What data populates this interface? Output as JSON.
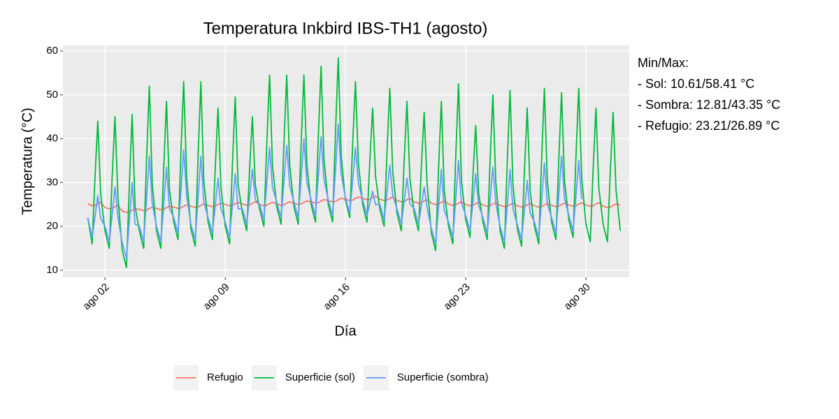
{
  "chart_data": {
    "type": "line",
    "title": "Temperatura Inkbird IBS-TH1 (agosto)",
    "xlabel": "Día",
    "ylabel": "Temperatura (°C)",
    "annotation": [
      "Min/Max:",
      "- Sol: 10.61/58.41 °C",
      "- Sombra: 12.81/43.35 °C",
      "- Refugio: 23.21/26.89 °C"
    ],
    "legend": "bottom",
    "grid": true,
    "xlim": [
      -0.45,
      32.52
    ],
    "ylim": [
      8.41,
      61.27
    ],
    "xticks": [
      {
        "value": 2,
        "label": "ago 02"
      },
      {
        "value": 9,
        "label": "ago 09"
      },
      {
        "value": 16,
        "label": "ago 16"
      },
      {
        "value": 23,
        "label": "ago 23"
      },
      {
        "value": 30,
        "label": "ago 30"
      }
    ],
    "yticks": [
      10,
      20,
      30,
      40,
      50,
      60
    ],
    "x": [
      1,
      1.25,
      1.42,
      1.58,
      1.75,
      2,
      2.25,
      2.42,
      2.58,
      2.75,
      3,
      3.25,
      3.42,
      3.58,
      3.75,
      4,
      4.25,
      4.42,
      4.58,
      4.75,
      5,
      5.25,
      5.42,
      5.58,
      5.75,
      6,
      6.25,
      6.42,
      6.58,
      6.75,
      7,
      7.25,
      7.42,
      7.58,
      7.75,
      8,
      8.25,
      8.42,
      8.58,
      8.75,
      9,
      9.25,
      9.42,
      9.58,
      9.75,
      10,
      10.25,
      10.42,
      10.58,
      10.75,
      11,
      11.25,
      11.42,
      11.58,
      11.75,
      12,
      12.25,
      12.42,
      12.58,
      12.75,
      13,
      13.25,
      13.42,
      13.58,
      13.75,
      14,
      14.25,
      14.42,
      14.58,
      14.75,
      15,
      15.25,
      15.42,
      15.58,
      15.75,
      16,
      16.25,
      16.42,
      16.58,
      16.75,
      17,
      17.25,
      17.42,
      17.58,
      17.75,
      18,
      18.25,
      18.42,
      18.58,
      18.75,
      19,
      19.25,
      19.42,
      19.58,
      19.75,
      20,
      20.25,
      20.42,
      20.58,
      20.75,
      21,
      21.25,
      21.42,
      21.58,
      21.75,
      22,
      22.25,
      22.42,
      22.58,
      22.75,
      23,
      23.25,
      23.42,
      23.58,
      23.75,
      24,
      24.25,
      24.42,
      24.58,
      24.75,
      25,
      25.25,
      25.42,
      25.58,
      25.75,
      26,
      26.25,
      26.42,
      26.58,
      26.75,
      27,
      27.25,
      27.42,
      27.58,
      27.75,
      28,
      28.25,
      28.42,
      28.58,
      28.75,
      29,
      29.25,
      29.42,
      29.58,
      29.75,
      30,
      30.25,
      30.42,
      30.58,
      30.75,
      31,
      31.25,
      31.42,
      31.58,
      31.75,
      32
    ],
    "series": [
      {
        "name": "Refugio",
        "color": "#F8766D",
        "values": [
          25.2,
          24.7,
          24.8,
          25.2,
          25.5,
          24.3,
          24.0,
          24.1,
          24.5,
          24.8,
          23.5,
          23.21,
          23.3,
          23.7,
          24.0,
          23.9,
          23.6,
          23.7,
          24.1,
          24.4,
          24.1,
          23.8,
          23.9,
          24.3,
          24.6,
          24.4,
          24.1,
          24.2,
          24.6,
          24.9,
          24.6,
          24.3,
          24.4,
          24.8,
          25.1,
          24.8,
          24.5,
          24.6,
          25.0,
          25.3,
          25.0,
          24.7,
          24.8,
          25.2,
          25.5,
          25.1,
          24.8,
          24.9,
          25.3,
          25.6,
          25.0,
          24.7,
          24.8,
          25.2,
          25.5,
          25.1,
          24.8,
          24.9,
          25.3,
          25.6,
          25.3,
          25.0,
          25.1,
          25.5,
          25.8,
          25.6,
          25.3,
          25.4,
          25.8,
          26.1,
          25.9,
          25.6,
          25.7,
          26.1,
          26.4,
          26.2,
          25.9,
          26.0,
          26.4,
          26.7,
          26.4,
          26.1,
          26.2,
          26.6,
          26.89,
          26.2,
          25.9,
          26.0,
          26.4,
          26.7,
          25.9,
          25.6,
          25.7,
          26.1,
          26.4,
          25.6,
          25.3,
          25.4,
          25.8,
          26.1,
          25.3,
          25.0,
          25.1,
          25.5,
          25.8,
          25.1,
          24.8,
          24.9,
          25.3,
          25.6,
          25.0,
          24.7,
          24.8,
          25.2,
          25.5,
          24.9,
          24.6,
          24.7,
          25.1,
          25.4,
          24.8,
          24.5,
          24.6,
          25.0,
          25.3,
          24.7,
          24.4,
          24.5,
          24.9,
          25.2,
          24.7,
          24.4,
          24.5,
          24.9,
          25.2,
          24.8,
          24.5,
          24.6,
          25.0,
          25.3,
          24.9,
          24.6,
          24.7,
          25.1,
          25.4,
          24.9,
          24.6,
          24.7,
          25.1,
          25.4,
          24.6,
          24.3,
          24.4,
          24.8,
          25.1,
          24.9
        ]
      },
      {
        "name": "Superficie (sol)",
        "color": "#00BA38",
        "values": [
          22,
          16,
          31.4,
          44,
          27.2,
          19,
          15,
          31.5,
          45,
          27,
          14.6,
          10.61,
          29.8,
          45.5,
          24.6,
          19,
          15,
          35.4,
          52,
          29.8,
          19,
          15,
          33.4,
          48.5,
          28.4,
          21,
          17,
          36.8,
          53,
          31.4,
          19.5,
          15.5,
          36.1,
          53,
          30.5,
          21,
          17,
          33.5,
          47,
          29,
          20,
          16,
          34.4,
          49.5,
          29.4,
          23,
          19,
          33.3,
          45,
          29.4,
          24,
          20,
          39,
          54.5,
          33.8,
          24.5,
          20.5,
          39.2,
          54.5,
          34.1,
          24.5,
          20.5,
          39.2,
          54.5,
          34.1,
          25,
          21,
          40.5,
          56.5,
          35.2,
          25,
          21,
          41.6,
          58.41,
          36,
          26,
          22,
          39,
          53,
          34.4,
          25,
          21,
          35.3,
          47,
          31.4,
          24,
          20,
          37.3,
          51.5,
          32.6,
          23,
          19,
          35.2,
          48.5,
          30.8,
          23,
          19,
          33.9,
          46,
          29.8,
          18.5,
          14.5,
          33.2,
          48.5,
          28.1,
          20,
          16,
          36.1,
          52.5,
          30.6,
          21.5,
          17.5,
          31.5,
          43,
          27.7,
          21,
          17,
          35.2,
          50,
          30.2,
          19,
          15,
          34.8,
          51,
          29.4,
          19.5,
          15.5,
          32.8,
          47,
          28.1,
          20,
          16,
          35.5,
          51.5,
          30.2,
          21,
          17,
          35.4,
          50.5,
          30.4,
          21.5,
          17.5,
          36.2,
          51.5,
          31.1,
          20.5,
          16.5,
          33.3,
          47,
          28.7,
          20.5,
          16.5,
          32.7,
          46,
          28.3,
          19
        ]
      },
      {
        "name": "Superficie (sombra)",
        "color": "#619CFF",
        "values": [
          22,
          17.5,
          22.3,
          27,
          21.8,
          20,
          16.5,
          22.8,
          29,
          22.1,
          16.3,
          12.81,
          21.4,
          30,
          20.5,
          20,
          16.5,
          26.3,
          36,
          25.3,
          20,
          16.5,
          25,
          33.5,
          24.2,
          22,
          18.5,
          28,
          37.5,
          27.1,
          20.5,
          17,
          26.5,
          36,
          25.6,
          22,
          18.5,
          24.8,
          31,
          24.1,
          21,
          17.5,
          24.8,
          32,
          24,
          24,
          20.5,
          26.8,
          33,
          26.1,
          25,
          21.5,
          29.8,
          38,
          28.9,
          25.5,
          22,
          30.3,
          38.5,
          29.4,
          25.5,
          22,
          31,
          40,
          30.1,
          26,
          22.5,
          31.5,
          40.5,
          30.6,
          26,
          22.5,
          32.9,
          43.35,
          31.9,
          26.5,
          23,
          30.5,
          38,
          29.8,
          26,
          22.5,
          25.3,
          28,
          25,
          25,
          21.5,
          27.8,
          34,
          27.1,
          24,
          20.5,
          25.8,
          31,
          25.2,
          24,
          20.5,
          24.8,
          29,
          24.3,
          19.5,
          16,
          24.5,
          33,
          23.7,
          21,
          17.5,
          26.3,
          35,
          25.4,
          22.5,
          19,
          25.5,
          32,
          24.9,
          22,
          18.5,
          26,
          33.5,
          25.3,
          20,
          16.5,
          24.8,
          33,
          23.9,
          20.5,
          17,
          23.8,
          30.5,
          23.1,
          21,
          17.5,
          26,
          34.5,
          25.2,
          22,
          18.5,
          27.3,
          36,
          26.4,
          22.5,
          19,
          27,
          35,
          26.2,
          null,
          null,
          null,
          null,
          null,
          null,
          null,
          null,
          null,
          null,
          null
        ]
      }
    ]
  }
}
